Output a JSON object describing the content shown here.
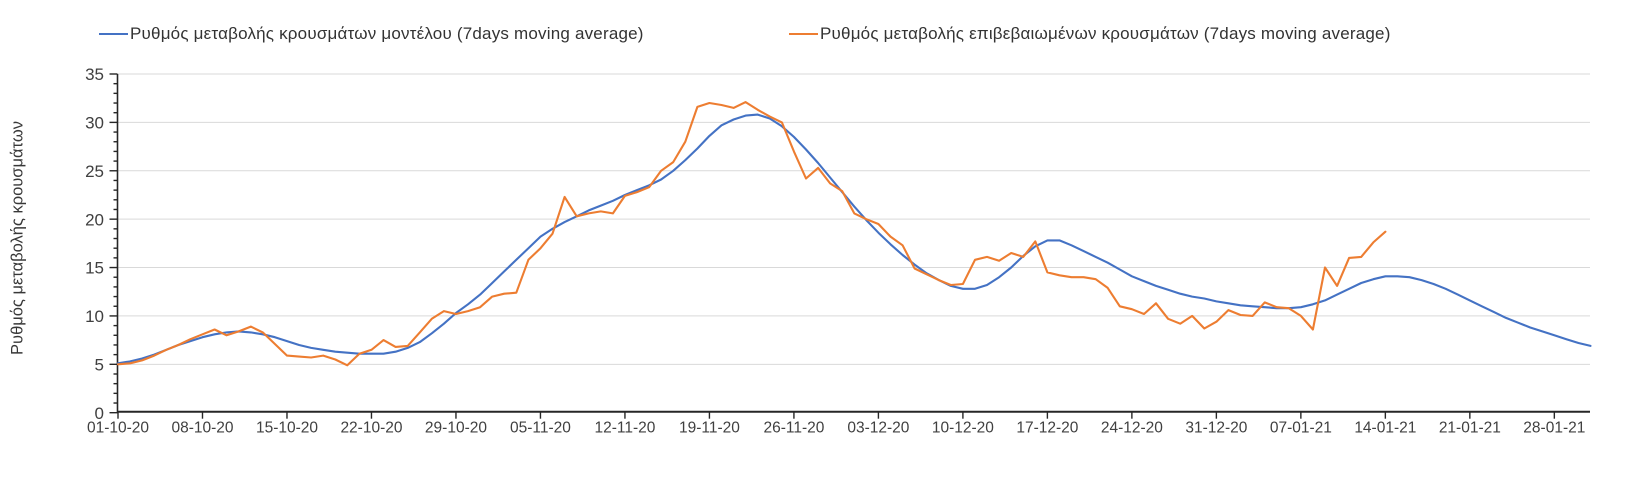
{
  "chart_data": {
    "type": "line",
    "ylabel": "Ρυθμός μεταβολής κρουσμάτων",
    "ylim": [
      0,
      35
    ],
    "y_tick_step": 5,
    "y_minor_tick_step": 1,
    "grid": "horizontal-on",
    "legend_position": "top",
    "x_tick_labels": [
      "01-10-20",
      "08-10-20",
      "15-10-20",
      "22-10-20",
      "29-10-20",
      "05-11-20",
      "12-11-20",
      "19-11-20",
      "26-11-20",
      "03-12-20",
      "10-12-20",
      "17-12-20",
      "24-12-20",
      "31-12-20",
      "07-01-21",
      "14-01-21",
      "21-01-21",
      "28-01-21"
    ],
    "x_tick_interval_days": 7,
    "x_start_date": "01-10-20",
    "x_interval": "daily",
    "axis_color": "#262626",
    "gridline_color": "#d9d9d9",
    "tick_label_color": "#404040",
    "series": [
      {
        "name": "Ρυθμός μεταβολής κρουσμάτων μοντέλου (7days moving average)",
        "color": "#4472C4",
        "start_date": "01-10-20",
        "end_date": "31-01-21",
        "values": [
          5.1,
          5.3,
          5.6,
          6.0,
          6.5,
          7.0,
          7.4,
          7.8,
          8.1,
          8.3,
          8.4,
          8.3,
          8.1,
          7.8,
          7.4,
          7.0,
          6.7,
          6.5,
          6.3,
          6.2,
          6.1,
          6.1,
          6.1,
          6.3,
          6.7,
          7.3,
          8.2,
          9.2,
          10.3,
          11.2,
          12.2,
          13.4,
          14.6,
          15.8,
          17.0,
          18.2,
          19.0,
          19.7,
          20.3,
          20.9,
          21.4,
          21.9,
          22.5,
          23.0,
          23.5,
          24.1,
          25.0,
          26.1,
          27.3,
          28.6,
          29.7,
          30.3,
          30.7,
          30.8,
          30.4,
          29.6,
          28.5,
          27.2,
          25.8,
          24.3,
          22.8,
          21.3,
          19.9,
          18.6,
          17.4,
          16.3,
          15.3,
          14.4,
          13.7,
          13.1,
          12.8,
          12.8,
          13.2,
          14.0,
          15.0,
          16.2,
          17.2,
          17.8,
          17.8,
          17.3,
          16.7,
          16.1,
          15.5,
          14.8,
          14.1,
          13.6,
          13.1,
          12.7,
          12.3,
          12.0,
          11.8,
          11.5,
          11.3,
          11.1,
          11.0,
          10.9,
          10.8,
          10.8,
          10.9,
          11.2,
          11.6,
          12.2,
          12.8,
          13.4,
          13.8,
          14.1,
          14.1,
          14.0,
          13.7,
          13.3,
          12.8,
          12.2,
          11.6,
          11.0,
          10.4,
          9.8,
          9.3,
          8.8,
          8.4,
          8.0,
          7.6,
          7.2,
          6.9
        ]
      },
      {
        "name": "Ρυθμός μεταβολής επιβεβαιωμένων κρουσμάτων (7days moving average)",
        "color": "#ED7D31",
        "start_date": "01-10-20",
        "end_date": "14-01-21",
        "values": [
          5.0,
          5.1,
          5.4,
          5.9,
          6.5,
          7.0,
          7.6,
          8.1,
          8.6,
          8.0,
          8.4,
          8.9,
          8.3,
          7.1,
          5.9,
          5.8,
          5.7,
          5.9,
          5.5,
          4.9,
          6.1,
          6.5,
          7.5,
          6.8,
          6.9,
          8.3,
          9.7,
          10.5,
          10.2,
          10.5,
          10.9,
          12.0,
          12.3,
          12.4,
          15.8,
          17.0,
          18.5,
          22.3,
          20.3,
          20.6,
          20.8,
          20.6,
          22.4,
          22.8,
          23.3,
          25.0,
          25.9,
          28.0,
          31.6,
          32.0,
          31.8,
          31.5,
          32.1,
          31.3,
          30.6,
          30.0,
          27.0,
          24.2,
          25.3,
          23.7,
          22.9,
          20.6,
          20.0,
          19.5,
          18.2,
          17.3,
          14.9,
          14.3,
          13.7,
          13.2,
          13.3,
          15.8,
          16.1,
          15.7,
          16.5,
          16.1,
          17.7,
          14.5,
          14.2,
          14.0,
          14.0,
          13.8,
          12.9,
          11.0,
          10.7,
          10.2,
          11.3,
          9.7,
          9.2,
          10.0,
          8.7,
          9.4,
          10.6,
          10.1,
          10.0,
          11.4,
          10.9,
          10.8,
          10.0,
          8.6,
          15.0,
          13.1,
          16.0,
          16.1,
          17.6,
          18.7
        ]
      }
    ]
  }
}
